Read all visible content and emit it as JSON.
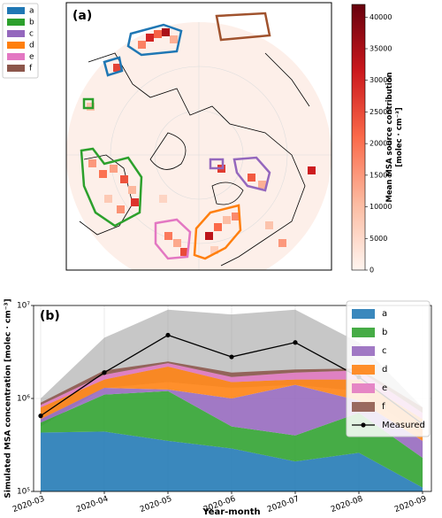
{
  "chart_data": [
    {
      "type": "heatmap",
      "label": "(a)",
      "regions": [
        {
          "name": "a",
          "color": "#1f77b4"
        },
        {
          "name": "b",
          "color": "#2ca02c"
        },
        {
          "name": "c",
          "color": "#9467bd"
        },
        {
          "name": "d",
          "color": "#ff7f0e"
        },
        {
          "name": "e",
          "color": "#e377c2"
        },
        {
          "name": "f",
          "color": "#8c564b"
        }
      ],
      "colorbar_label": [
        "Mean MSA source contribution",
        "[molec · cm⁻³]"
      ],
      "colormap": [
        "#fff5f0",
        "#fcbba1",
        "#fb6a4a",
        "#cb181d",
        "#67000d"
      ],
      "zlim": [
        0,
        42000
      ],
      "zticks": [
        0,
        5000,
        10000,
        15000,
        20000,
        25000,
        30000,
        35000,
        40000
      ],
      "cells": [
        30000,
        22000,
        35000,
        18000,
        12000,
        26000,
        9000,
        15000,
        20000,
        14000,
        24000,
        11000,
        8000,
        16000,
        28000,
        6000,
        19000,
        13000,
        25000,
        33000,
        21000,
        10000,
        17000,
        7000,
        23000,
        12000,
        27000,
        9000,
        15000,
        31000
      ]
    },
    {
      "type": "stacked_area",
      "label": "(b)",
      "xlabel": "Year-month",
      "ylabel": "Simulated MSA concentration [molec · cm⁻³]",
      "categories": [
        "2020-03",
        "2020-04",
        "2020-05",
        "2020-06",
        "2020-07",
        "2020-08",
        "2020-09"
      ],
      "log_y": true,
      "ylim": [
        100000,
        10000000
      ],
      "yticks": [
        {
          "value": 100000,
          "label": "10⁵"
        },
        {
          "value": 1000000,
          "label": "10⁶"
        },
        {
          "value": 10000000,
          "label": "10⁷"
        }
      ],
      "grid": true,
      "legend": "upper right",
      "series": [
        {
          "name": "a",
          "color": "#1f77b4",
          "values": [
            430000,
            440000,
            350000,
            290000,
            210000,
            260000,
            110000
          ]
        },
        {
          "name": "b",
          "color": "#2ca02c",
          "values": [
            120000,
            660000,
            850000,
            210000,
            190000,
            440000,
            120000
          ]
        },
        {
          "name": "c",
          "color": "#9467bd",
          "values": [
            50000,
            200000,
            50000,
            500000,
            1000000,
            250000,
            120000
          ]
        },
        {
          "name": "d",
          "color": "#ff7f0e",
          "values": [
            200000,
            300000,
            950000,
            500000,
            200000,
            650000,
            250000
          ]
        },
        {
          "name": "e",
          "color": "#e377c2",
          "values": [
            50000,
            200000,
            200000,
            200000,
            300000,
            400000,
            100000
          ]
        },
        {
          "name": "f",
          "color": "#8c564b",
          "values": [
            50000,
            200000,
            100000,
            200000,
            150000,
            100000,
            100000
          ]
        }
      ],
      "range": {
        "color": "#999999",
        "lower": [
          500000,
          1300000,
          1500000,
          1300000,
          1400000,
          1200000,
          400000
        ],
        "upper": [
          1000000,
          4500000,
          9000000,
          8000000,
          9000000,
          4000000,
          800000
        ]
      },
      "measured": {
        "name": "Measured",
        "color": "#000000",
        "values": [
          650000,
          1900000,
          4800000,
          2800000,
          4000000,
          1700000,
          530000
        ]
      }
    }
  ]
}
